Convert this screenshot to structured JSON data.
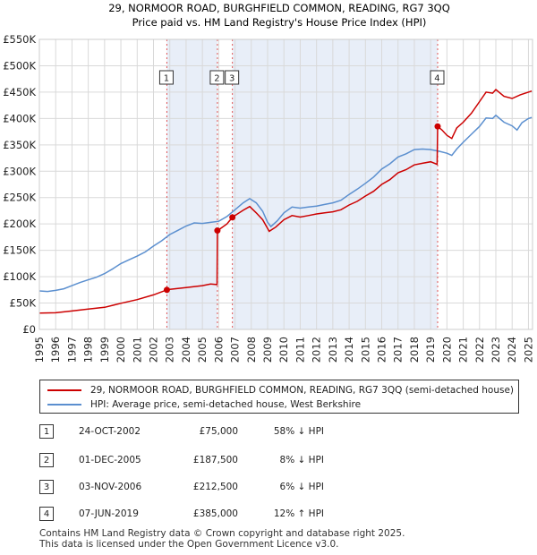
{
  "chart_data": {
    "type": "line",
    "title": "29, NORMOOR ROAD, BURGHFIELD COMMON, READING, RG7 3QQ",
    "subtitle": "Price paid vs. HM Land Registry's House Price Index (HPI)",
    "xlim": [
      1995,
      2025.25
    ],
    "ylim": [
      0,
      550000
    ],
    "yticks": [
      0,
      50000,
      100000,
      150000,
      200000,
      250000,
      300000,
      350000,
      400000,
      450000,
      500000,
      550000
    ],
    "ytick_labels": [
      "£0",
      "£50K",
      "£100K",
      "£150K",
      "£200K",
      "£250K",
      "£300K",
      "£350K",
      "£400K",
      "£450K",
      "£500K",
      "£550K"
    ],
    "xticks": [
      "1995",
      "1996",
      "1997",
      "1998",
      "1999",
      "2000",
      "2001",
      "2002",
      "2003",
      "2004",
      "2005",
      "2006",
      "2007",
      "2008",
      "2009",
      "2010",
      "2011",
      "2012",
      "2013",
      "2014",
      "2015",
      "2016",
      "2017",
      "2018",
      "2019",
      "2020",
      "2021",
      "2022",
      "2023",
      "2024",
      "2025"
    ],
    "grid": true,
    "series": [
      {
        "name": "29, NORMOOR ROAD, BURGHFIELD COMMON, READING, RG7 3QQ (semi-detached house)",
        "color": "#cc0000",
        "points": [
          [
            1995,
            31000
          ],
          [
            1996,
            31500
          ],
          [
            1997,
            35000
          ],
          [
            1998,
            38500
          ],
          [
            1999,
            42000
          ],
          [
            2000,
            49500
          ],
          [
            2001,
            56500
          ],
          [
            2002,
            65500
          ],
          [
            2002.82,
            75000
          ],
          [
            2003,
            76000
          ],
          [
            2004,
            79500
          ],
          [
            2005,
            83000
          ],
          [
            2005.5,
            86000
          ],
          [
            2005.9,
            85000
          ],
          [
            2005.92,
            187500
          ],
          [
            2006,
            189000
          ],
          [
            2006.5,
            200000
          ],
          [
            2006.84,
            212500
          ],
          [
            2007,
            216000
          ],
          [
            2007.5,
            226000
          ],
          [
            2007.9,
            233000
          ],
          [
            2008.3,
            221000
          ],
          [
            2008.7,
            208000
          ],
          [
            2009.1,
            186000
          ],
          [
            2009.5,
            194000
          ],
          [
            2010,
            208000
          ],
          [
            2010.5,
            216000
          ],
          [
            2011,
            213000
          ],
          [
            2011.5,
            216000
          ],
          [
            2012,
            219000
          ],
          [
            2012.5,
            221000
          ],
          [
            2013,
            223000
          ],
          [
            2013.5,
            227000
          ],
          [
            2014,
            236000
          ],
          [
            2014.5,
            243000
          ],
          [
            2015,
            253000
          ],
          [
            2015.5,
            262000
          ],
          [
            2016,
            275000
          ],
          [
            2016.5,
            284000
          ],
          [
            2017,
            297000
          ],
          [
            2017.5,
            303000
          ],
          [
            2018,
            312000
          ],
          [
            2018.5,
            315000
          ],
          [
            2019,
            318000
          ],
          [
            2019.4,
            313000
          ],
          [
            2019.43,
            385000
          ],
          [
            2019.7,
            378000
          ],
          [
            2020,
            368000
          ],
          [
            2020.3,
            362000
          ],
          [
            2020.6,
            382000
          ],
          [
            2021,
            393000
          ],
          [
            2021.5,
            410000
          ],
          [
            2022,
            432000
          ],
          [
            2022.4,
            450000
          ],
          [
            2022.8,
            448000
          ],
          [
            2023,
            455000
          ],
          [
            2023.5,
            442000
          ],
          [
            2024,
            438000
          ],
          [
            2024.5,
            445000
          ],
          [
            2025,
            450000
          ],
          [
            2025.2,
            452000
          ]
        ]
      },
      {
        "name": "HPI: Average price, semi-detached house, West Berkshire",
        "color": "#5b8fcf",
        "points": [
          [
            1995,
            73000
          ],
          [
            1995.5,
            72000
          ],
          [
            1996,
            74000
          ],
          [
            1996.5,
            77000
          ],
          [
            1997,
            83000
          ],
          [
            1997.5,
            89000
          ],
          [
            1998,
            94000
          ],
          [
            1998.5,
            99000
          ],
          [
            1999,
            106000
          ],
          [
            1999.5,
            115000
          ],
          [
            2000,
            125000
          ],
          [
            2000.5,
            132000
          ],
          [
            2001,
            139000
          ],
          [
            2001.5,
            147000
          ],
          [
            2002,
            158000
          ],
          [
            2002.5,
            168000
          ],
          [
            2003,
            180000
          ],
          [
            2003.5,
            188000
          ],
          [
            2004,
            196000
          ],
          [
            2004.5,
            202000
          ],
          [
            2005,
            201000
          ],
          [
            2005.5,
            203000
          ],
          [
            2006,
            205000
          ],
          [
            2006.5,
            214000
          ],
          [
            2007,
            227000
          ],
          [
            2007.5,
            240000
          ],
          [
            2007.9,
            248000
          ],
          [
            2008.3,
            240000
          ],
          [
            2008.7,
            224000
          ],
          [
            2009,
            203000
          ],
          [
            2009.2,
            195000
          ],
          [
            2009.6,
            206000
          ],
          [
            2010,
            221000
          ],
          [
            2010.5,
            232000
          ],
          [
            2011,
            230000
          ],
          [
            2011.5,
            232000
          ],
          [
            2012,
            234000
          ],
          [
            2012.5,
            237000
          ],
          [
            2013,
            240000
          ],
          [
            2013.5,
            245000
          ],
          [
            2014,
            256000
          ],
          [
            2014.5,
            266000
          ],
          [
            2015,
            277000
          ],
          [
            2015.5,
            289000
          ],
          [
            2016,
            304000
          ],
          [
            2016.5,
            314000
          ],
          [
            2017,
            327000
          ],
          [
            2017.5,
            333000
          ],
          [
            2018,
            341000
          ],
          [
            2018.5,
            342000
          ],
          [
            2019,
            341000
          ],
          [
            2019.5,
            338000
          ],
          [
            2020,
            334000
          ],
          [
            2020.3,
            330000
          ],
          [
            2020.6,
            342000
          ],
          [
            2021,
            355000
          ],
          [
            2021.5,
            370000
          ],
          [
            2022,
            385000
          ],
          [
            2022.4,
            401000
          ],
          [
            2022.8,
            400000
          ],
          [
            2023,
            406000
          ],
          [
            2023.5,
            393000
          ],
          [
            2024,
            386000
          ],
          [
            2024.3,
            378000
          ],
          [
            2024.6,
            392000
          ],
          [
            2025,
            400000
          ],
          [
            2025.2,
            402000
          ]
        ]
      }
    ],
    "transactions": [
      {
        "id": "1",
        "x": 2002.82,
        "price": 75000
      },
      {
        "id": "2",
        "x": 2005.92,
        "price": 187500
      },
      {
        "id": "3",
        "x": 2006.84,
        "price": 212500
      },
      {
        "id": "4",
        "x": 2019.43,
        "price": 385000
      }
    ],
    "shaded_spans": [
      [
        2002.82,
        2005.92
      ],
      [
        2006.84,
        2019.43
      ]
    ]
  },
  "table": {
    "rows": [
      {
        "num": "1",
        "date": "24-OCT-2002",
        "price": "£75,000",
        "hpi": "58% ↓ HPI"
      },
      {
        "num": "2",
        "date": "01-DEC-2005",
        "price": "£187,500",
        "hpi": "8% ↓ HPI"
      },
      {
        "num": "3",
        "date": "03-NOV-2006",
        "price": "£212,500",
        "hpi": "6% ↓ HPI"
      },
      {
        "num": "4",
        "date": "07-JUN-2019",
        "price": "£385,000",
        "hpi": "12% ↑ HPI"
      }
    ]
  },
  "footer": {
    "line1": "Contains HM Land Registry data © Crown copyright and database right 2025.",
    "line2": "This data is licensed under the Open Government Licence v3.0."
  }
}
